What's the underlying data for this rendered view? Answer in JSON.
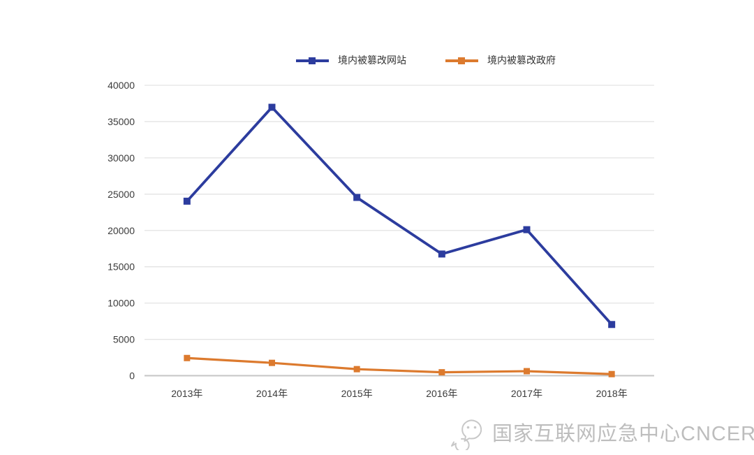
{
  "page": {
    "background": "#ffffff"
  },
  "chart_data": {
    "type": "line",
    "title": "",
    "xlabel": "",
    "ylabel": "",
    "categories": [
      "2013年",
      "2014年",
      "2015年",
      "2016年",
      "2017年",
      "2018年"
    ],
    "series": [
      {
        "name": "境内被篡改网站",
        "color": "#2c3c9e",
        "values": [
          24034,
          36969,
          24550,
          16758,
          20111,
          7049
        ]
      },
      {
        "name": "境内被篡改政府",
        "color": "#dc7a2e",
        "values": [
          2430,
          1763,
          898,
          467,
          618,
          216
        ]
      }
    ],
    "ylim": [
      0,
      40000
    ],
    "yticks": [
      0,
      5000,
      10000,
      15000,
      20000,
      25000,
      30000,
      35000,
      40000
    ],
    "grid": true,
    "legend_position": "top",
    "marker": "square",
    "axis_text_color": "#3c3c3c",
    "gridline_color": "#e3e3e3",
    "baseline_color": "#c6c6c6"
  },
  "watermark": {
    "text": "国家互联网应急中心CNCERT",
    "icon": "wechat-logo",
    "color": "#bdbdbd"
  }
}
